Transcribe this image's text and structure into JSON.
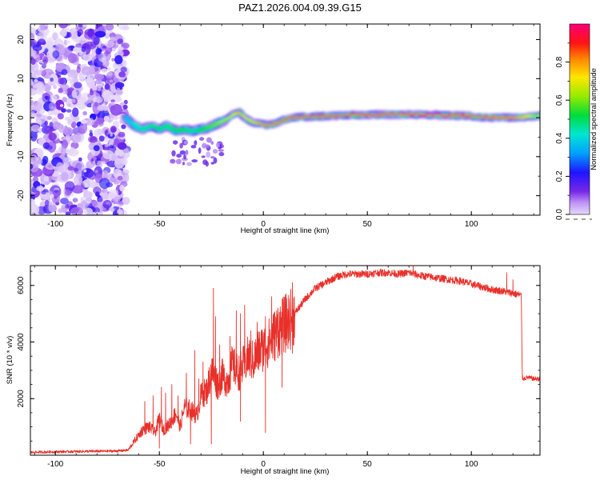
{
  "title": "PAZ1.2026.004.09.39.G15",
  "chart_data": [
    {
      "type": "heatmap",
      "name": "spectrogram",
      "xlabel": "Height of straight line (km)",
      "ylabel": "Frequency (Hz)",
      "xlim": [
        -112,
        133
      ],
      "ylim": [
        -25,
        24
      ],
      "x_ticks": [
        -100,
        -50,
        0,
        50,
        100
      ],
      "x_tick_labels": [
        "-100",
        "-50",
        "0",
        "50",
        "100"
      ],
      "y_ticks": [
        -20,
        -10,
        0,
        10,
        20
      ],
      "y_tick_labels": [
        "-20",
        "-10",
        "0",
        "10",
        "20"
      ],
      "noise_region": [
        -112,
        -66
      ],
      "ridge": {
        "x": [
          -66,
          -62,
          -58,
          -54,
          -50,
          -46,
          -42,
          -38,
          -34,
          -30,
          -26,
          -22,
          -18,
          -14,
          -12,
          -10,
          -6,
          -2,
          2,
          6,
          10,
          14,
          20,
          30,
          40,
          50,
          60,
          70,
          80,
          90,
          100,
          110,
          120,
          133
        ],
        "freq": [
          0.0,
          -2.0,
          -3.0,
          -2.0,
          -3.0,
          -2.0,
          -3.5,
          -3.0,
          -3.5,
          -3.0,
          -2.5,
          -1.5,
          -0.5,
          1.0,
          1.5,
          0.5,
          -1.0,
          -1.5,
          -2.0,
          -1.5,
          -0.5,
          0.0,
          0.2,
          0.4,
          0.6,
          0.7,
          0.8,
          0.8,
          0.7,
          0.6,
          0.4,
          0.0,
          0.0,
          0.5
        ],
        "amplitude": [
          0.35,
          0.4,
          0.45,
          0.45,
          0.5,
          0.45,
          0.5,
          0.5,
          0.45,
          0.5,
          0.55,
          0.6,
          0.65,
          0.7,
          0.8,
          0.75,
          0.7,
          0.8,
          0.85,
          0.85,
          0.9,
          0.95,
          0.95,
          0.9,
          0.95,
          0.95,
          0.95,
          0.95,
          1.0,
          0.95,
          0.9,
          0.85,
          0.85,
          0.6
        ]
      },
      "colorbar": {
        "label": "Normalized spectral amplitude",
        "range": [
          0,
          1
        ],
        "ticks": [
          0.0,
          0.2,
          0.4,
          0.6,
          0.8
        ],
        "tick_labels": [
          "0.0",
          "0.2",
          "0.4",
          "0.6",
          "0.8"
        ]
      }
    },
    {
      "type": "line",
      "name": "snr",
      "xlabel": "Height of straight line (km)",
      "ylabel": "SNR (10 * v/v)",
      "xlim": [
        -112,
        133
      ],
      "ylim": [
        0,
        6700
      ],
      "x_ticks": [
        -100,
        -50,
        0,
        50,
        100
      ],
      "x_tick_labels": [
        "-100",
        "-50",
        "0",
        "50",
        "100"
      ],
      "y_ticks": [
        2000,
        4000,
        6000
      ],
      "y_tick_labels": [
        "2000",
        "4000",
        "6000"
      ],
      "color": "#e8302a",
      "x": [
        -112,
        -100,
        -90,
        -80,
        -70,
        -65,
        -62,
        -58,
        -55,
        -52,
        -50,
        -48,
        -45,
        -42,
        -40,
        -38,
        -35,
        -32,
        -30,
        -27,
        -25,
        -22,
        -20,
        -17,
        -15,
        -12,
        -10,
        -7,
        -5,
        -2,
        0,
        3,
        5,
        8,
        10,
        13,
        15,
        18,
        20,
        25,
        30,
        35,
        40,
        45,
        50,
        55,
        60,
        65,
        70,
        75,
        80,
        85,
        90,
        95,
        100,
        105,
        110,
        115,
        118,
        121,
        124,
        124.5,
        125,
        127,
        130,
        133
      ],
      "y": [
        100,
        120,
        130,
        140,
        150,
        180,
        500,
        900,
        1000,
        800,
        1300,
        900,
        1100,
        1500,
        1000,
        1700,
        1600,
        1400,
        2100,
        2300,
        3000,
        2500,
        2800,
        2600,
        3200,
        2900,
        3100,
        3500,
        3300,
        3700,
        3800,
        4000,
        4200,
        4500,
        4600,
        4800,
        5000,
        5300,
        5500,
        5900,
        6100,
        6300,
        6400,
        6400,
        6400,
        6450,
        6450,
        6400,
        6450,
        6350,
        6300,
        6250,
        6200,
        6150,
        6050,
        5950,
        5850,
        5800,
        5750,
        5700,
        5650,
        2750,
        2700,
        2750,
        2700,
        2700
      ],
      "spikes": [
        {
          "x": -57,
          "y": 1900
        },
        {
          "x": -53,
          "y": 2100
        },
        {
          "x": -49,
          "y": 2400
        },
        {
          "x": -47,
          "y": 2200
        },
        {
          "x": -44,
          "y": 2500
        },
        {
          "x": -41,
          "y": 2100
        },
        {
          "x": -37,
          "y": 2900
        },
        {
          "x": -33,
          "y": 3700
        },
        {
          "x": -31,
          "y": 2700
        },
        {
          "x": -29,
          "y": 3300
        },
        {
          "x": -24,
          "y": 5900
        },
        {
          "x": -23,
          "y": 4900
        },
        {
          "x": -21,
          "y": 3900
        },
        {
          "x": -16,
          "y": 4200
        },
        {
          "x": -13,
          "y": 5100
        },
        {
          "x": -11,
          "y": 5000
        },
        {
          "x": -9,
          "y": 5300
        },
        {
          "x": -6,
          "y": 4400
        },
        {
          "x": -3,
          "y": 4700
        },
        {
          "x": 1,
          "y": 4900
        },
        {
          "x": 4,
          "y": 5600
        },
        {
          "x": 7,
          "y": 5200
        },
        {
          "x": 11,
          "y": 5700
        },
        {
          "x": 14,
          "y": 6100
        },
        {
          "x": 72,
          "y": 6700
        },
        {
          "x": 117,
          "y": 6450
        },
        {
          "x": 120,
          "y": 6200
        }
      ],
      "dips": [
        {
          "x": -50,
          "y": 250
        },
        {
          "x": -35,
          "y": 400
        },
        {
          "x": -25,
          "y": 400
        },
        {
          "x": -11,
          "y": 1200
        },
        {
          "x": 1,
          "y": 800
        },
        {
          "x": 9,
          "y": 2400
        },
        {
          "x": 14,
          "y": 3600
        }
      ]
    }
  ]
}
